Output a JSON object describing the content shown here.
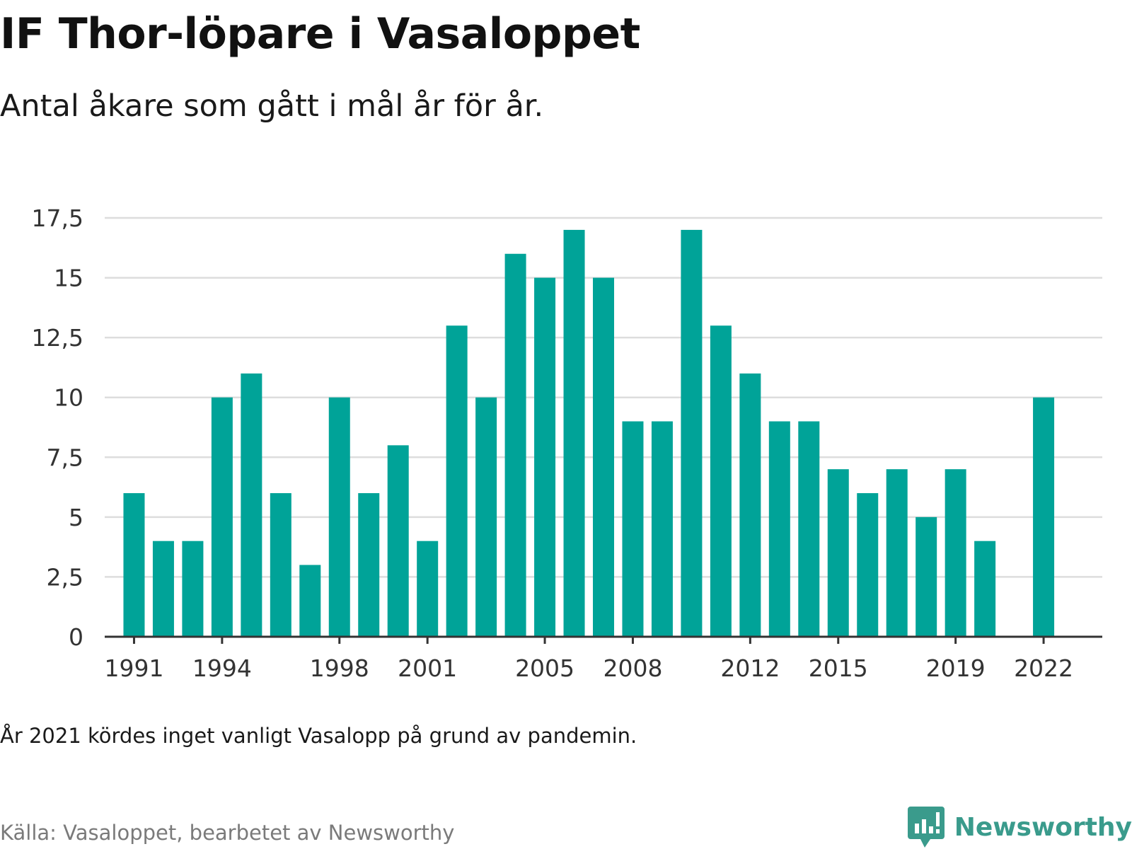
{
  "title": "IF Thor-löpare i Vasaloppet",
  "subtitle": "Antal åkare som gått i mål år för år.",
  "note": "År 2021 kördes inget vanligt Vasalopp på grund av pandemin.",
  "source": "Källa: Vasaloppet, bearbetet av Newsworthy",
  "brand": {
    "name": "Newsworthy",
    "icon": "newsworthy-logo-icon",
    "color": "#3a9b8c"
  },
  "chart_data": {
    "type": "bar",
    "title": "IF Thor-löpare i Vasaloppet",
    "subtitle": "Antal åkare som gått i mål år för år.",
    "xlabel": "",
    "ylabel": "",
    "color": "#00a398",
    "gridlines": true,
    "legend": "none",
    "ylim": [
      0,
      17.5
    ],
    "yticks": [
      0,
      2.5,
      5,
      7.5,
      10,
      12.5,
      15,
      17.5
    ],
    "ytick_labels": [
      "0",
      "2,5",
      "5",
      "7,5",
      "10",
      "12,5",
      "15",
      "17,5"
    ],
    "xticks": [
      1991,
      1994,
      1998,
      2001,
      2005,
      2008,
      2012,
      2015,
      2019,
      2022
    ],
    "xlim": [
      1990,
      2024
    ],
    "categories": [
      1991,
      1992,
      1993,
      1994,
      1995,
      1996,
      1997,
      1998,
      1999,
      2000,
      2001,
      2002,
      2003,
      2004,
      2005,
      2006,
      2007,
      2008,
      2009,
      2010,
      2011,
      2012,
      2013,
      2014,
      2015,
      2016,
      2017,
      2018,
      2019,
      2020,
      2022
    ],
    "values": [
      6,
      4,
      4,
      10,
      11,
      6,
      3,
      10,
      6,
      8,
      4,
      13,
      10,
      16,
      15,
      17,
      15,
      9,
      9,
      17,
      13,
      11,
      9,
      9,
      7,
      6,
      7,
      5,
      7,
      4,
      10
    ]
  }
}
